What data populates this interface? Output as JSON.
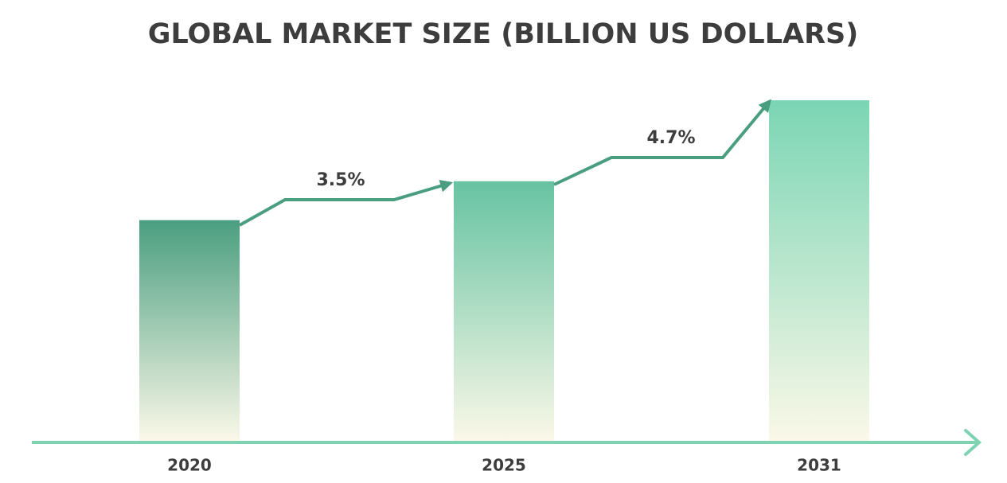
{
  "chart_data": {
    "type": "bar",
    "title": "GLOBAL MARKET SIZE (BILLION US DOLLARS)",
    "categories": [
      "2020",
      "2025",
      "2031"
    ],
    "values": [
      278,
      327,
      429
    ],
    "colors": [
      "#4a9e80",
      "#66c3a2",
      "#7ad5b4"
    ],
    "ylim": [
      0,
      429
    ],
    "growth_labels": [
      "3.5%",
      "4.7%"
    ]
  }
}
